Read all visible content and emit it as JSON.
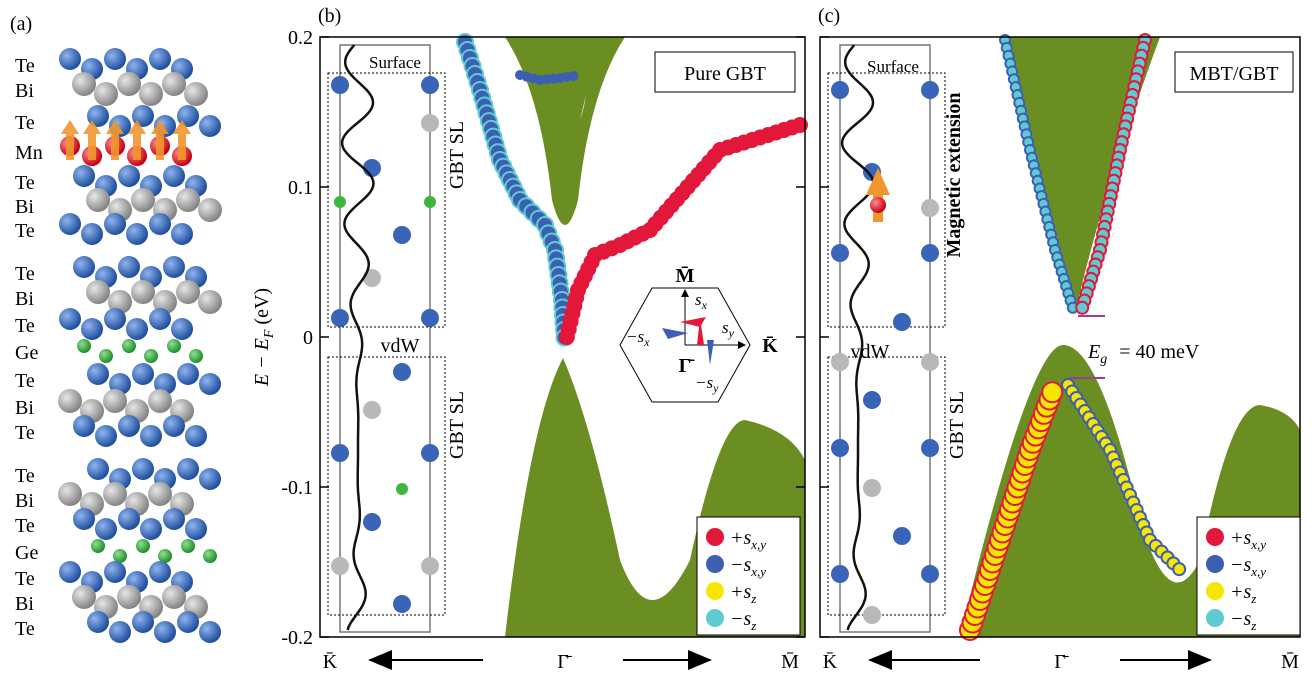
{
  "panel_a": {
    "label": "(a)",
    "atoms": [
      "Te",
      "Bi",
      "Te",
      "Mn",
      "Te",
      "Bi",
      "Te",
      "Te",
      "Bi",
      "Te",
      "Ge",
      "Te",
      "Bi",
      "Te",
      "Te",
      "Bi",
      "Te",
      "Ge",
      "Te",
      "Bi",
      "Te"
    ]
  },
  "panel_b": {
    "label": "(b)",
    "title": "Pure GBT",
    "surface": "Surface",
    "sl_top": "GBT SL",
    "vdw": "vdW",
    "sl_bottom": "GBT SL"
  },
  "panel_c": {
    "label": "(c)",
    "title": "MBT/GBT",
    "surface": "Surface",
    "magnetic": "Magnetic extension",
    "vdw": "vdW",
    "sl_bottom": "GBT SL",
    "gap": {
      "symbol": "E",
      "sub": "g",
      "text": "= 40 meV"
    }
  },
  "y_axis": {
    "symbol": "E − E",
    "sub": "F",
    "unit": "(eV)",
    "ylim": [
      -0.2,
      0.2
    ],
    "yticks": [
      -0.2,
      -0.1,
      0,
      0.1,
      0.2
    ]
  },
  "x_axis": {
    "labels": [
      "K̄",
      "Γ̄",
      "M̄"
    ]
  },
  "inset": {
    "m": "M̄",
    "k": "K̄",
    "gamma": "Γ̄",
    "spins": [
      {
        "text": "s",
        "sub": "x"
      },
      {
        "text": "−s",
        "sub": "x"
      },
      {
        "text": "s",
        "sub": "y"
      },
      {
        "text": "−s",
        "sub": "y"
      }
    ]
  },
  "legend": [
    {
      "text": "+s",
      "sub": "x,y",
      "color": "#e3173a"
    },
    {
      "text": "−s",
      "sub": "x,y",
      "color": "#3c5fb4"
    },
    {
      "text": "+s",
      "sub": "z",
      "color": "#f7e600"
    },
    {
      "text": "−s",
      "sub": "z",
      "color": "#5fcbd0"
    }
  ]
}
